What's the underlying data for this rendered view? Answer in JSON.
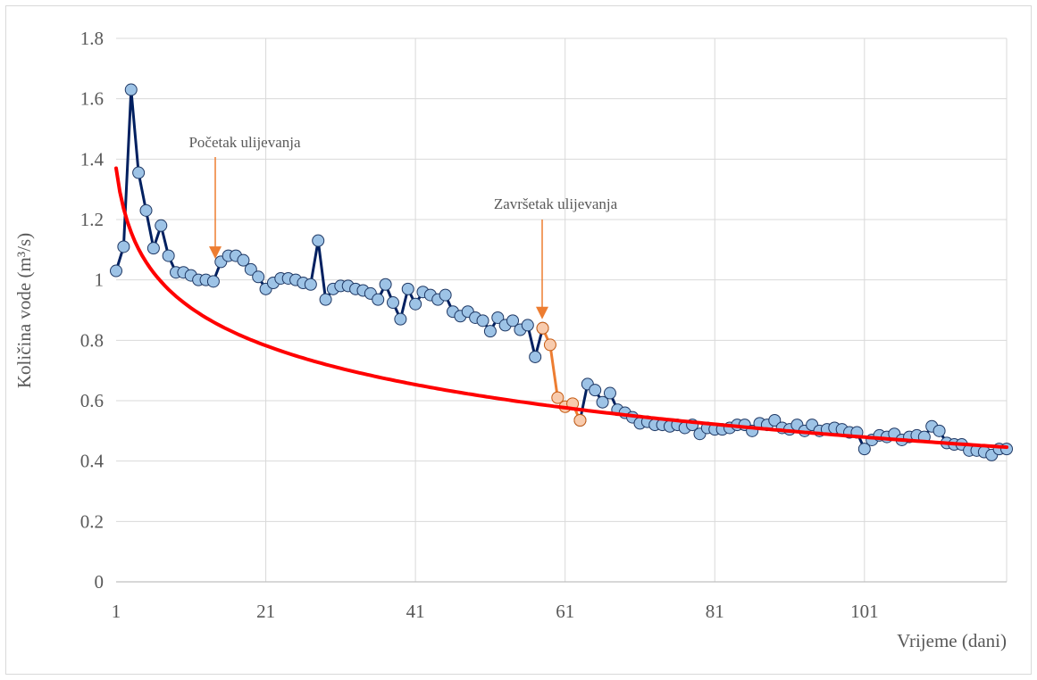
{
  "chart_data": {
    "type": "line",
    "ylabel": "Količina vode (m³/s)",
    "xlabel": "Vrijeme (dani)",
    "xlim": [
      1,
      120
    ],
    "ylim": [
      0,
      1.8
    ],
    "y_ticks": [
      "0",
      "0.2",
      "0.4",
      "0.6",
      "0.8",
      "1",
      "1.2",
      "1.4",
      "1.6",
      "1.8"
    ],
    "x_ticks": [
      "1",
      "21",
      "41",
      "61",
      "81",
      "101"
    ],
    "grid": true,
    "annotations": [
      {
        "text": "Početak ulijevanja",
        "x": 14,
        "y": 1.04
      },
      {
        "text": "Završetak ulijevanja",
        "x": 58,
        "y": 0.84
      }
    ],
    "series": [
      {
        "color": "#002060",
        "marker_fill": "#9dc3e6",
        "x": [
          1,
          2,
          3,
          4,
          5,
          6,
          7,
          8,
          9,
          10,
          11,
          12,
          13,
          14,
          15,
          16,
          17,
          18,
          19,
          20,
          21,
          22,
          23,
          24,
          25,
          26,
          27,
          28,
          29,
          30,
          31,
          32,
          33,
          34,
          35,
          36,
          37,
          38,
          39,
          40,
          41,
          42,
          43,
          44,
          45,
          46,
          47,
          48,
          49,
          50,
          51,
          52,
          53,
          54,
          55,
          56,
          57,
          58
        ],
        "values": [
          1.03,
          1.11,
          1.63,
          1.355,
          1.23,
          1.105,
          1.18,
          1.08,
          1.025,
          1.025,
          1.015,
          1.0,
          1.0,
          0.995,
          1.06,
          1.08,
          1.08,
          1.065,
          1.035,
          1.01,
          0.97,
          0.99,
          1.005,
          1.005,
          1.0,
          0.99,
          0.985,
          1.13,
          0.935,
          0.97,
          0.98,
          0.98,
          0.97,
          0.965,
          0.955,
          0.935,
          0.985,
          0.925,
          0.87,
          0.97,
          0.92,
          0.96,
          0.95,
          0.935,
          0.95,
          0.895,
          0.88,
          0.895,
          0.875,
          0.865,
          0.83,
          0.875,
          0.85,
          0.865,
          0.835,
          0.85,
          0.745,
          0.84
        ]
      },
      {
        "color": "#ed7d31",
        "marker_fill": "#f8cbad",
        "x": [
          58,
          59,
          60,
          61,
          62,
          63
        ],
        "values": [
          0.84,
          0.785,
          0.61,
          0.58,
          0.59,
          0.535
        ]
      },
      {
        "color": "#002060",
        "marker_fill": "#9dc3e6",
        "x": [
          63,
          64,
          65,
          66,
          67,
          68,
          69,
          70,
          71,
          72,
          73,
          74,
          75,
          76,
          77,
          78,
          79,
          80,
          81,
          82,
          83,
          84,
          85,
          86,
          87,
          88,
          89,
          90,
          91,
          92,
          93,
          94,
          95,
          96,
          97,
          98,
          99,
          100,
          101,
          102,
          103,
          104,
          105,
          106,
          107,
          108,
          109,
          110,
          111,
          112,
          113,
          114,
          115,
          116,
          117,
          118,
          119,
          120
        ],
        "values": [
          0.535,
          0.655,
          0.635,
          0.595,
          0.625,
          0.57,
          0.56,
          0.545,
          0.525,
          0.53,
          0.52,
          0.52,
          0.515,
          0.52,
          0.51,
          0.52,
          0.49,
          0.51,
          0.505,
          0.505,
          0.51,
          0.52,
          0.52,
          0.5,
          0.525,
          0.52,
          0.535,
          0.51,
          0.505,
          0.52,
          0.5,
          0.52,
          0.5,
          0.505,
          0.51,
          0.505,
          0.495,
          0.495,
          0.44,
          0.47,
          0.485,
          0.48,
          0.49,
          0.47,
          0.48,
          0.485,
          0.48,
          0.515,
          0.5,
          0.46,
          0.455,
          0.455,
          0.435,
          0.435,
          0.43,
          0.42,
          0.44,
          0.44
        ]
      },
      {
        "color": "#ff0000",
        "trend_formula": "y = 1.37 - 0.193*ln(x)",
        "x": [
          1,
          2,
          4,
          6,
          8,
          10,
          14,
          20,
          25,
          30,
          40,
          50,
          60,
          70,
          80,
          90,
          100,
          110,
          120
        ],
        "values": [
          1.37,
          1.236,
          1.102,
          1.024,
          0.969,
          0.926,
          0.861,
          0.792,
          0.749,
          0.714,
          0.658,
          0.615,
          0.58,
          0.55,
          0.524,
          0.502,
          0.481,
          0.463,
          0.446
        ]
      }
    ]
  }
}
